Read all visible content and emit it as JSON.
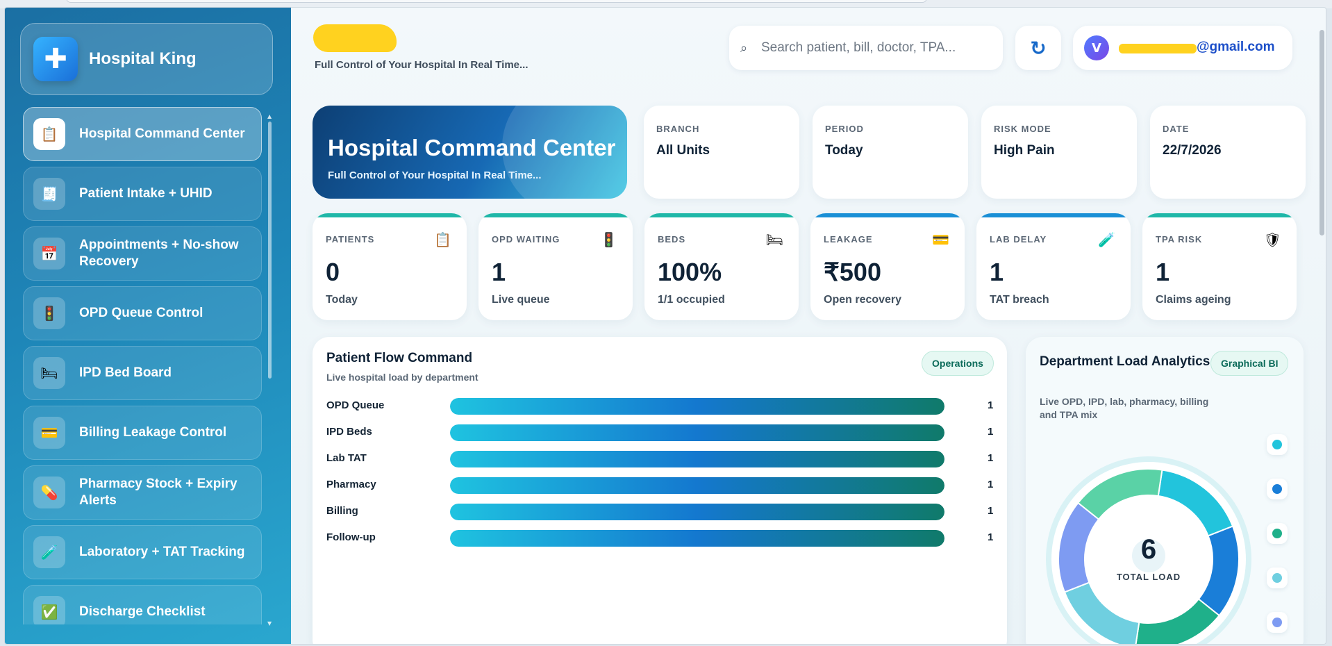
{
  "sidebar": {
    "brand": {
      "name": "Hospital King",
      "icon": "plus-cross-icon"
    },
    "items": [
      {
        "label": "Hospital Command Center",
        "icon": "clipboard-icon",
        "glyph": "📋",
        "active": true
      },
      {
        "label": "Patient Intake + UHID",
        "icon": "receipt-icon",
        "glyph": "🧾",
        "active": false
      },
      {
        "label": "Appointments + No-show Recovery",
        "icon": "calendar-icon",
        "glyph": "📅",
        "active": false
      },
      {
        "label": "OPD Queue Control",
        "icon": "traffic-light-icon",
        "glyph": "🚦",
        "active": false
      },
      {
        "label": "IPD Bed Board",
        "icon": "bed-icon",
        "glyph": "🛏",
        "active": false
      },
      {
        "label": "Billing Leakage Control",
        "icon": "credit-card-icon",
        "glyph": "💳",
        "active": false
      },
      {
        "label": "Pharmacy Stock + Expiry Alerts",
        "icon": "pill-icon",
        "glyph": "💊",
        "active": false
      },
      {
        "label": "Laboratory + TAT Tracking",
        "icon": "test-tube-icon",
        "glyph": "🧪",
        "active": false
      },
      {
        "label": "Discharge Checklist",
        "icon": "checkbox-icon",
        "glyph": "✅",
        "active": false
      }
    ]
  },
  "header": {
    "subtitle": "Full Control of Your Hospital In Real Time...",
    "search_placeholder": "Search patient, bill, doctor, TPA...",
    "search_icon": "search-icon",
    "refresh_icon": "refresh-icon",
    "user": {
      "avatar_initial": "V",
      "email_visible": "@gmail.com"
    }
  },
  "hero": {
    "title": "Hospital Command Center",
    "subtitle": "Full Control of Your Hospital In Real Time..."
  },
  "filters": [
    {
      "label": "BRANCH",
      "value": "All Units"
    },
    {
      "label": "PERIOD",
      "value": "Today"
    },
    {
      "label": "RISK MODE",
      "value": "High Pain"
    },
    {
      "label": "DATE",
      "value": "22/7/2026"
    }
  ],
  "kpis": [
    {
      "label": "PATIENTS",
      "value": "0",
      "sub": "Today",
      "icon": "clipboard-icon",
      "glyph": "📋",
      "accent": "#1fb7a8"
    },
    {
      "label": "OPD WAITING",
      "value": "1",
      "sub": "Live queue",
      "icon": "traffic-light-icon",
      "glyph": "🚦",
      "accent": "#1fb7a8"
    },
    {
      "label": "BEDS",
      "value": "100%",
      "sub": "1/1 occupied",
      "icon": "bed-icon",
      "glyph": "🛏",
      "accent": "#1fb7a8"
    },
    {
      "label": "LEAKAGE",
      "value": "₹500",
      "sub": "Open recovery",
      "icon": "credit-card-icon",
      "glyph": "💳",
      "accent": "#1a8fd6"
    },
    {
      "label": "LAB DELAY",
      "value": "1",
      "sub": "TAT breach",
      "icon": "test-tube-icon",
      "glyph": "🧪",
      "accent": "#1a8fd6"
    },
    {
      "label": "TPA RISK",
      "value": "1",
      "sub": "Claims ageing",
      "icon": "shield-icon",
      "glyph": "🛡",
      "accent": "#1fb7a8"
    }
  ],
  "flow": {
    "title": "Patient Flow Command",
    "subtitle": "Live hospital load by department",
    "badge": "Operations",
    "rows": [
      {
        "label": "OPD Queue",
        "count": "1",
        "fill": 1.0
      },
      {
        "label": "IPD Beds",
        "count": "1",
        "fill": 1.0
      },
      {
        "label": "Lab TAT",
        "count": "1",
        "fill": 1.0
      },
      {
        "label": "Pharmacy",
        "count": "1",
        "fill": 1.0
      },
      {
        "label": "Billing",
        "count": "1",
        "fill": 1.0
      },
      {
        "label": "Follow-up",
        "count": "1",
        "fill": 1.0
      }
    ]
  },
  "dept": {
    "title": "Department Load Analytics",
    "subtitle": "Live OPD, IPD, lab, pharmacy, billing and TPA mix",
    "badge": "Graphical BI",
    "total": "6",
    "total_caption": "TOTAL LOAD",
    "segments": [
      {
        "value": 1,
        "color": "#22c4dc"
      },
      {
        "value": 1,
        "color": "#1a7ed8"
      },
      {
        "value": 1,
        "color": "#1fb08a"
      },
      {
        "value": 1,
        "color": "#6fcfe0"
      },
      {
        "value": 1,
        "color": "#7e9bf2"
      },
      {
        "value": 1,
        "color": "#5ad2a6"
      }
    ]
  }
}
